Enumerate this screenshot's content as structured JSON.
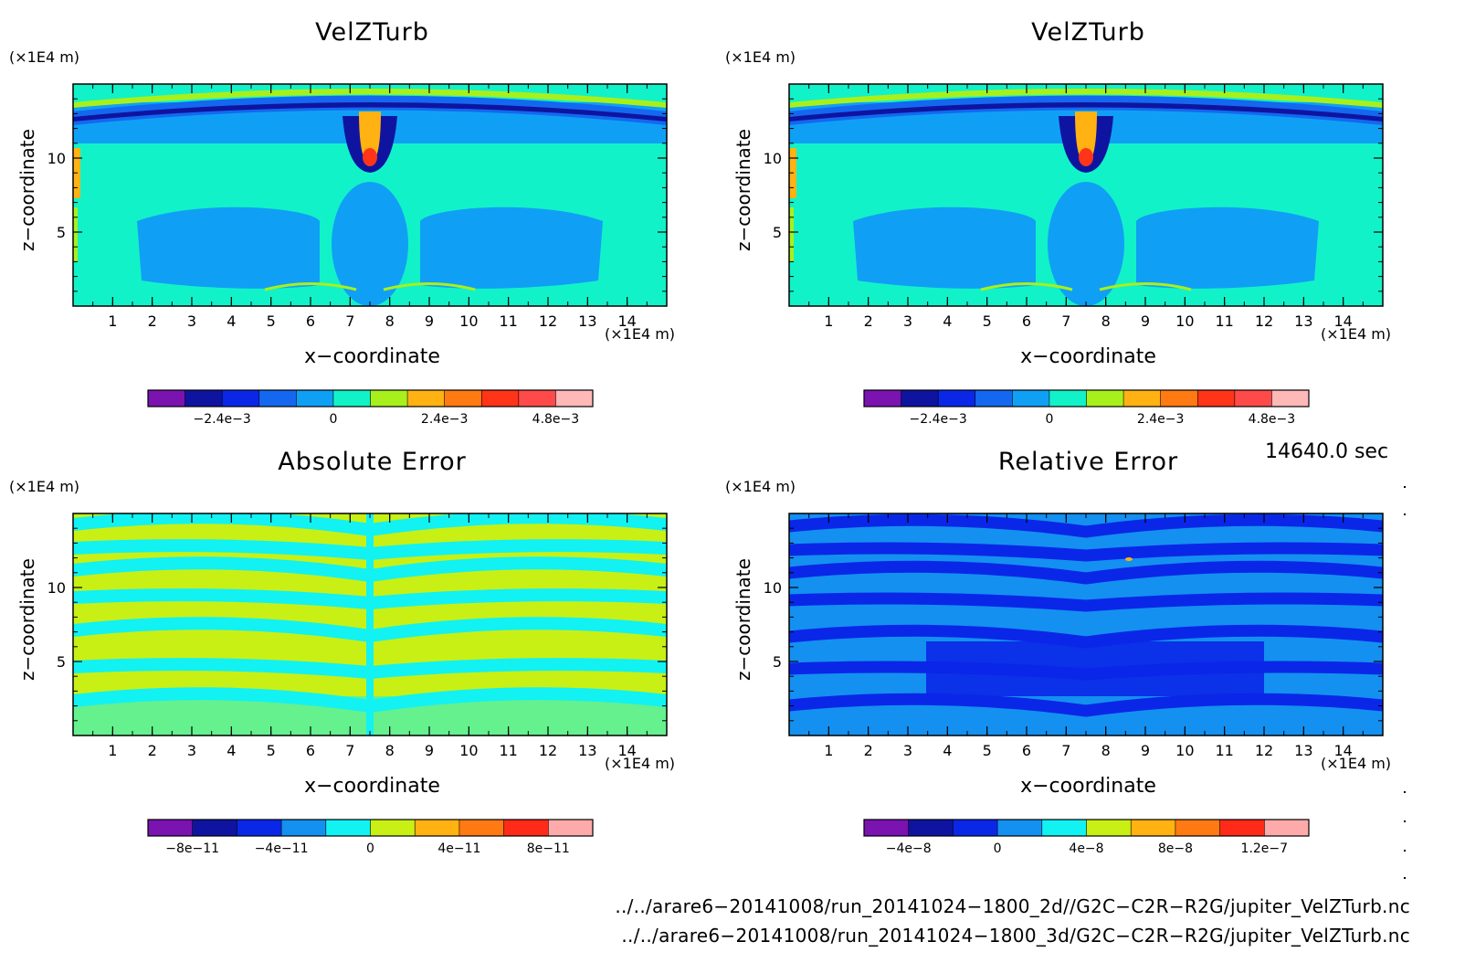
{
  "chart_data": [
    {
      "type": "heatmap",
      "title": "VelZTurb",
      "xlabel": "x−coordinate",
      "ylabel": "z−coordinate",
      "x_unit": "(×1E4 m)",
      "y_unit": "(×1E4 m)",
      "xlim": [
        0,
        15
      ],
      "ylim": [
        0,
        15
      ],
      "x_ticks": [
        1,
        2,
        3,
        4,
        5,
        6,
        7,
        8,
        9,
        10,
        11,
        12,
        13,
        14
      ],
      "y_ticks": [
        5,
        10
      ],
      "colorbar": {
        "colors": [
          "#7a13b0",
          "#0f14a0",
          "#0a27e8",
          "#1468f0",
          "#0fa0f5",
          "#12f2c8",
          "#a8f01c",
          "#ffb212",
          "#ff7a12",
          "#ff3418",
          "#ff4a4a",
          "#ffb8b8"
        ],
        "labels": [
          "−2.4e−3",
          "0",
          "2.4e−3",
          "4.8e−3"
        ],
        "label_positions": [
          2,
          5,
          8,
          11
        ]
      }
    },
    {
      "type": "heatmap",
      "title": "VelZTurb",
      "xlabel": "x−coordinate",
      "ylabel": "z−coordinate",
      "x_unit": "(×1E4 m)",
      "y_unit": "(×1E4 m)",
      "xlim": [
        0,
        15
      ],
      "ylim": [
        0,
        15
      ],
      "x_ticks": [
        1,
        2,
        3,
        4,
        5,
        6,
        7,
        8,
        9,
        10,
        11,
        12,
        13,
        14
      ],
      "y_ticks": [
        5,
        10
      ],
      "colorbar": {
        "colors": [
          "#7a13b0",
          "#0f14a0",
          "#0a27e8",
          "#1468f0",
          "#0fa0f5",
          "#12f2c8",
          "#a8f01c",
          "#ffb212",
          "#ff7a12",
          "#ff3418",
          "#ff4a4a",
          "#ffb8b8"
        ],
        "labels": [
          "−2.4e−3",
          "0",
          "2.4e−3",
          "4.8e−3"
        ],
        "label_positions": [
          2,
          5,
          8,
          11
        ]
      }
    },
    {
      "type": "heatmap",
      "title": "Absolute Error",
      "xlabel": "x−coordinate",
      "ylabel": "z−coordinate",
      "x_unit": "(×1E4 m)",
      "y_unit": "(×1E4 m)",
      "xlim": [
        0,
        15
      ],
      "ylim": [
        0,
        15
      ],
      "x_ticks": [
        1,
        2,
        3,
        4,
        5,
        6,
        7,
        8,
        9,
        10,
        11,
        12,
        13,
        14
      ],
      "y_ticks": [
        5,
        10
      ],
      "colorbar": {
        "colors": [
          "#7a13b0",
          "#0f14a0",
          "#0a27e8",
          "#1490f0",
          "#12f2f2",
          "#c8f014",
          "#ffb212",
          "#ff7a12",
          "#ff2a18",
          "#ffaaaa"
        ],
        "labels": [
          "−8e−11",
          "−4e−11",
          "0",
          "4e−11",
          "8e−11"
        ],
        "label_positions": [
          1,
          3,
          5,
          7,
          9
        ]
      }
    },
    {
      "type": "heatmap",
      "title": "Relative Error",
      "xlabel": "x−coordinate",
      "ylabel": "z−coordinate",
      "x_unit": "(×1E4 m)",
      "y_unit": "(×1E4 m)",
      "xlim": [
        0,
        15
      ],
      "ylim": [
        0,
        15
      ],
      "x_ticks": [
        1,
        2,
        3,
        4,
        5,
        6,
        7,
        8,
        9,
        10,
        11,
        12,
        13,
        14
      ],
      "y_ticks": [
        5,
        10
      ],
      "colorbar": {
        "colors": [
          "#7a13b0",
          "#0f14a0",
          "#0a27e8",
          "#1490f0",
          "#12f2f2",
          "#c8f014",
          "#ffb212",
          "#ff7a12",
          "#ff2a18",
          "#ffaaaa"
        ],
        "labels": [
          "−4e−8",
          "0",
          "4e−8",
          "8e−8",
          "1.2e−7"
        ],
        "label_positions": [
          1,
          3,
          5,
          7,
          9
        ]
      }
    }
  ],
  "timestamp": "14640.0 sec",
  "file_paths": [
    "../../arare6−20141008/run_20141024−1800_2d//G2C−C2R−R2G/jupiter_VelZTurb.nc",
    "../../arare6−20141008/run_20141024−1800_3d/G2C−C2R−R2G/jupiter_VelZTurb.nc"
  ]
}
